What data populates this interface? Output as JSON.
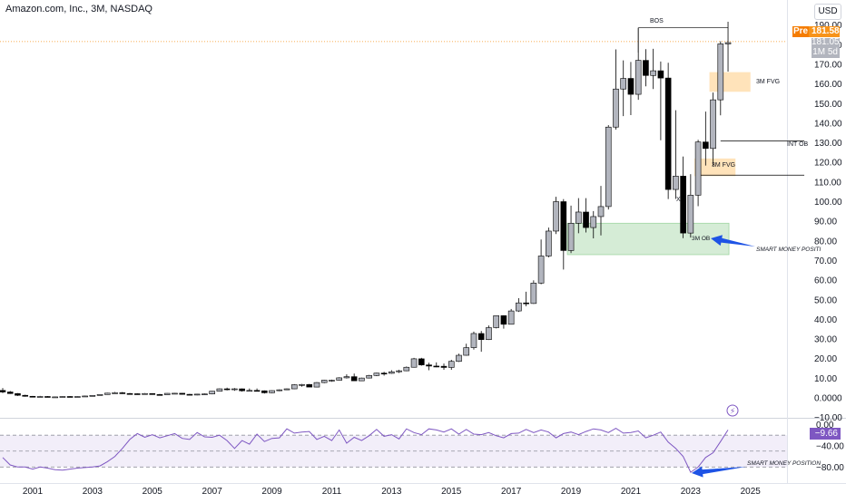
{
  "header": {
    "symbol_title": "Amazon.com, Inc., 3M, NASDAQ",
    "currency": "USD"
  },
  "price_tags": {
    "pre_label": "Pre",
    "pre_value": "181.58",
    "last_value": "181.05",
    "countdown": "1M 5d"
  },
  "colors": {
    "up_fill": "#b2b5be",
    "down_fill": "#000000",
    "candle_border": "#000000",
    "fvg_zone": "#ffe0b2",
    "ob_zone": "#c8e6c9",
    "rsi_line": "#7e57c2",
    "rsi_band": "#ede7f6",
    "annotation_arrow": "#1e53e5",
    "pre_line": "#f7931a"
  },
  "annotations": {
    "bos": "BOS",
    "fvg_upper": "3M FVG",
    "fvg_lower": "3M FVG",
    "int_ob": "INT OB",
    "ob": "3M OB",
    "x_mark": "X",
    "smart_money_price": "SMART MONEY POSITI",
    "smart_money_rsi": "SMART MONEY POSITION"
  },
  "chart_data": [
    {
      "type": "candlestick",
      "title": "Amazon.com, Inc., 3M, NASDAQ",
      "interval": "3M",
      "ylim": [
        -10,
        190
      ],
      "y_ticks": [
        190,
        180,
        170,
        160,
        150,
        140,
        130,
        120,
        110,
        100,
        90,
        80,
        70,
        60,
        50,
        40,
        30,
        20,
        10,
        0,
        -10
      ],
      "y_tick_labels": [
        "190.00",
        "180.00",
        "170.00",
        "160.00",
        "150.00",
        "140.00",
        "130.00",
        "120.00",
        "110.00",
        "100.00",
        "90.00",
        "80.00",
        "70.00",
        "60.00",
        "50.00",
        "40.00",
        "30.00",
        "20.00",
        "10.00",
        "0.0000",
        "−10.00"
      ],
      "x_tick_labels": [
        "2001",
        "2003",
        "2005",
        "2007",
        "2009",
        "2011",
        "2013",
        "2015",
        "2017",
        "2019",
        "2021",
        "2023",
        "2025"
      ],
      "x_tick_years": [
        2001,
        2003,
        2005,
        2007,
        2009,
        2011,
        2013,
        2015,
        2017,
        2019,
        2021,
        2023,
        2025
      ],
      "xlim": [
        2000.0,
        2026.9
      ],
      "candles": [
        {
          "t": 2000.0,
          "o": 3.8,
          "h": 5.0,
          "l": 2.4,
          "c": 3.0
        },
        {
          "t": 2000.25,
          "o": 3.0,
          "h": 3.5,
          "l": 2.0,
          "c": 2.2
        },
        {
          "t": 2000.5,
          "o": 2.2,
          "h": 2.4,
          "l": 1.0,
          "c": 1.3
        },
        {
          "t": 2000.75,
          "o": 1.3,
          "h": 1.6,
          "l": 0.6,
          "c": 0.8
        },
        {
          "t": 2001.0,
          "o": 0.8,
          "h": 1.0,
          "l": 0.4,
          "c": 0.5
        },
        {
          "t": 2001.25,
          "o": 0.5,
          "h": 1.0,
          "l": 0.3,
          "c": 0.7
        },
        {
          "t": 2001.5,
          "o": 0.7,
          "h": 0.9,
          "l": 0.3,
          "c": 0.45
        },
        {
          "t": 2001.75,
          "o": 0.45,
          "h": 0.6,
          "l": 0.3,
          "c": 0.5
        },
        {
          "t": 2002.0,
          "o": 0.5,
          "h": 0.8,
          "l": 0.4,
          "c": 0.7
        },
        {
          "t": 2002.25,
          "o": 0.7,
          "h": 0.9,
          "l": 0.5,
          "c": 0.6
        },
        {
          "t": 2002.5,
          "o": 0.6,
          "h": 0.8,
          "l": 0.4,
          "c": 0.7
        },
        {
          "t": 2002.75,
          "o": 0.7,
          "h": 1.1,
          "l": 0.6,
          "c": 0.95
        },
        {
          "t": 2003.0,
          "o": 0.95,
          "h": 1.3,
          "l": 0.9,
          "c": 1.25
        },
        {
          "t": 2003.25,
          "o": 1.25,
          "h": 1.8,
          "l": 1.2,
          "c": 1.7
        },
        {
          "t": 2003.5,
          "o": 1.7,
          "h": 2.6,
          "l": 1.6,
          "c": 2.4
        },
        {
          "t": 2003.75,
          "o": 2.4,
          "h": 3.0,
          "l": 2.2,
          "c": 2.6
        },
        {
          "t": 2004.0,
          "o": 2.6,
          "h": 3.0,
          "l": 2.0,
          "c": 2.2
        },
        {
          "t": 2004.25,
          "o": 2.2,
          "h": 2.5,
          "l": 1.8,
          "c": 2.1
        },
        {
          "t": 2004.5,
          "o": 2.1,
          "h": 2.3,
          "l": 1.7,
          "c": 1.9
        },
        {
          "t": 2004.75,
          "o": 1.9,
          "h": 2.4,
          "l": 1.7,
          "c": 2.2
        },
        {
          "t": 2005.0,
          "o": 2.2,
          "h": 2.3,
          "l": 1.6,
          "c": 1.7
        },
        {
          "t": 2005.25,
          "o": 1.7,
          "h": 2.0,
          "l": 1.5,
          "c": 1.6
        },
        {
          "t": 2005.5,
          "o": 1.6,
          "h": 2.4,
          "l": 1.6,
          "c": 2.3
        },
        {
          "t": 2005.75,
          "o": 2.3,
          "h": 2.5,
          "l": 2.2,
          "c": 2.35
        },
        {
          "t": 2006.0,
          "o": 2.35,
          "h": 2.4,
          "l": 1.7,
          "c": 1.8
        },
        {
          "t": 2006.25,
          "o": 1.8,
          "h": 2.0,
          "l": 1.5,
          "c": 1.6
        },
        {
          "t": 2006.5,
          "o": 1.6,
          "h": 2.0,
          "l": 1.3,
          "c": 1.9
        },
        {
          "t": 2006.75,
          "o": 1.9,
          "h": 2.2,
          "l": 1.8,
          "c": 2.0
        },
        {
          "t": 2007.0,
          "o": 2.0,
          "h": 3.5,
          "l": 1.8,
          "c": 3.4
        },
        {
          "t": 2007.25,
          "o": 3.4,
          "h": 4.8,
          "l": 3.3,
          "c": 4.6
        },
        {
          "t": 2007.5,
          "o": 4.6,
          "h": 5.2,
          "l": 3.8,
          "c": 4.2
        },
        {
          "t": 2007.75,
          "o": 4.2,
          "h": 5.0,
          "l": 3.6,
          "c": 4.6
        },
        {
          "t": 2008.0,
          "o": 4.6,
          "h": 4.8,
          "l": 3.2,
          "c": 3.6
        },
        {
          "t": 2008.25,
          "o": 3.6,
          "h": 4.8,
          "l": 3.4,
          "c": 3.8
        },
        {
          "t": 2008.5,
          "o": 3.8,
          "h": 4.8,
          "l": 3.5,
          "c": 3.6
        },
        {
          "t": 2008.75,
          "o": 3.6,
          "h": 3.8,
          "l": 2.2,
          "c": 2.6
        },
        {
          "t": 2009.0,
          "o": 2.6,
          "h": 3.8,
          "l": 2.4,
          "c": 3.7
        },
        {
          "t": 2009.25,
          "o": 3.7,
          "h": 4.3,
          "l": 3.4,
          "c": 4.1
        },
        {
          "t": 2009.5,
          "o": 4.1,
          "h": 4.8,
          "l": 3.9,
          "c": 4.6
        },
        {
          "t": 2009.75,
          "o": 4.6,
          "h": 7.0,
          "l": 4.5,
          "c": 6.7
        },
        {
          "t": 2010.0,
          "o": 6.7,
          "h": 7.1,
          "l": 5.7,
          "c": 6.8
        },
        {
          "t": 2010.25,
          "o": 6.8,
          "h": 7.1,
          "l": 5.9,
          "c": 5.5
        },
        {
          "t": 2010.5,
          "o": 5.5,
          "h": 8.0,
          "l": 5.4,
          "c": 7.8
        },
        {
          "t": 2010.75,
          "o": 7.8,
          "h": 9.2,
          "l": 7.5,
          "c": 9.0
        },
        {
          "t": 2011.0,
          "o": 9.0,
          "h": 9.3,
          "l": 8.2,
          "c": 9.0
        },
        {
          "t": 2011.25,
          "o": 9.0,
          "h": 10.5,
          "l": 8.9,
          "c": 10.2
        },
        {
          "t": 2011.5,
          "o": 10.2,
          "h": 12.0,
          "l": 9.9,
          "c": 10.8
        },
        {
          "t": 2011.75,
          "o": 10.8,
          "h": 12.4,
          "l": 8.6,
          "c": 8.7
        },
        {
          "t": 2012.0,
          "o": 8.7,
          "h": 10.3,
          "l": 8.6,
          "c": 10.1
        },
        {
          "t": 2012.25,
          "o": 10.1,
          "h": 11.7,
          "l": 9.9,
          "c": 11.4
        },
        {
          "t": 2012.5,
          "o": 11.4,
          "h": 12.8,
          "l": 11.1,
          "c": 12.6
        },
        {
          "t": 2012.75,
          "o": 12.6,
          "h": 13.3,
          "l": 11.3,
          "c": 12.5
        },
        {
          "t": 2013.0,
          "o": 12.5,
          "h": 14.1,
          "l": 12.3,
          "c": 13.3
        },
        {
          "t": 2013.25,
          "o": 13.3,
          "h": 14.3,
          "l": 12.7,
          "c": 13.8
        },
        {
          "t": 2013.5,
          "o": 13.8,
          "h": 16.0,
          "l": 13.6,
          "c": 15.6
        },
        {
          "t": 2013.75,
          "o": 15.6,
          "h": 20.4,
          "l": 15.4,
          "c": 19.9
        },
        {
          "t": 2014.0,
          "o": 19.9,
          "h": 20.4,
          "l": 16.4,
          "c": 16.8
        },
        {
          "t": 2014.25,
          "o": 16.8,
          "h": 17.9,
          "l": 14.1,
          "c": 16.2
        },
        {
          "t": 2014.5,
          "o": 16.2,
          "h": 18.1,
          "l": 15.6,
          "c": 16.1
        },
        {
          "t": 2014.75,
          "o": 16.1,
          "h": 17.5,
          "l": 14.3,
          "c": 15.5
        },
        {
          "t": 2015.0,
          "o": 15.5,
          "h": 19.4,
          "l": 14.3,
          "c": 18.6
        },
        {
          "t": 2015.25,
          "o": 18.6,
          "h": 22.5,
          "l": 18.3,
          "c": 21.7
        },
        {
          "t": 2015.5,
          "o": 21.7,
          "h": 27.6,
          "l": 21.5,
          "c": 25.6
        },
        {
          "t": 2015.75,
          "o": 25.6,
          "h": 33.8,
          "l": 24.6,
          "c": 32.8
        },
        {
          "t": 2016.0,
          "o": 32.8,
          "h": 34.1,
          "l": 23.5,
          "c": 29.7
        },
        {
          "t": 2016.25,
          "o": 29.7,
          "h": 36.9,
          "l": 29.5,
          "c": 35.8
        },
        {
          "t": 2016.5,
          "o": 35.8,
          "h": 42.0,
          "l": 35.4,
          "c": 41.9
        },
        {
          "t": 2016.75,
          "o": 41.9,
          "h": 42.1,
          "l": 35.3,
          "c": 37.5
        },
        {
          "t": 2017.0,
          "o": 37.5,
          "h": 45.3,
          "l": 37.4,
          "c": 44.3
        },
        {
          "t": 2017.25,
          "o": 44.3,
          "h": 50.8,
          "l": 43.8,
          "c": 48.4
        },
        {
          "t": 2017.5,
          "o": 48.4,
          "h": 54.1,
          "l": 46.7,
          "c": 48.1
        },
        {
          "t": 2017.75,
          "o": 48.1,
          "h": 59.9,
          "l": 47.9,
          "c": 58.5
        },
        {
          "t": 2018.0,
          "o": 58.5,
          "h": 80.7,
          "l": 57.9,
          "c": 72.3
        },
        {
          "t": 2018.25,
          "o": 72.3,
          "h": 86.8,
          "l": 71.6,
          "c": 85.0
        },
        {
          "t": 2018.5,
          "o": 85.0,
          "h": 102.5,
          "l": 83.5,
          "c": 100.0
        },
        {
          "t": 2018.75,
          "o": 100.0,
          "h": 101.3,
          "l": 65.4,
          "c": 75.1
        },
        {
          "t": 2019.0,
          "o": 75.1,
          "h": 98.0,
          "l": 73.8,
          "c": 89.0
        },
        {
          "t": 2019.25,
          "o": 89.0,
          "h": 101.8,
          "l": 83.9,
          "c": 94.7
        },
        {
          "t": 2019.5,
          "o": 94.7,
          "h": 101.8,
          "l": 84.3,
          "c": 86.8
        },
        {
          "t": 2019.75,
          "o": 86.8,
          "h": 95.2,
          "l": 81.3,
          "c": 92.4
        },
        {
          "t": 2020.0,
          "o": 92.4,
          "h": 108.0,
          "l": 82.8,
          "c": 97.5
        },
        {
          "t": 2020.25,
          "o": 97.5,
          "h": 139.0,
          "l": 96.0,
          "c": 138.0
        },
        {
          "t": 2020.5,
          "o": 138.0,
          "h": 177.6,
          "l": 136.7,
          "c": 157.4
        },
        {
          "t": 2020.75,
          "o": 157.4,
          "h": 172.0,
          "l": 143.6,
          "c": 162.8
        },
        {
          "t": 2021.0,
          "o": 162.8,
          "h": 171.2,
          "l": 144.1,
          "c": 154.7
        },
        {
          "t": 2021.25,
          "o": 154.7,
          "h": 188.6,
          "l": 151.9,
          "c": 172.0
        },
        {
          "t": 2021.5,
          "o": 172.0,
          "h": 177.7,
          "l": 158.8,
          "c": 164.3
        },
        {
          "t": 2021.75,
          "o": 164.3,
          "h": 177.9,
          "l": 157.4,
          "c": 166.7
        },
        {
          "t": 2022.0,
          "o": 166.7,
          "h": 171.4,
          "l": 131.3,
          "c": 163.0
        },
        {
          "t": 2022.25,
          "o": 163.0,
          "h": 170.8,
          "l": 101.3,
          "c": 106.2
        },
        {
          "t": 2022.5,
          "o": 106.2,
          "h": 146.6,
          "l": 101.4,
          "c": 113.0
        },
        {
          "t": 2022.75,
          "o": 113.0,
          "h": 123.0,
          "l": 81.4,
          "c": 84.0
        },
        {
          "t": 2023.0,
          "o": 84.0,
          "h": 114.0,
          "l": 81.7,
          "c": 103.3
        },
        {
          "t": 2023.25,
          "o": 103.3,
          "h": 131.5,
          "l": 97.7,
          "c": 130.4
        },
        {
          "t": 2023.5,
          "o": 130.4,
          "h": 145.9,
          "l": 118.4,
          "c": 127.1
        },
        {
          "t": 2023.75,
          "o": 127.1,
          "h": 155.6,
          "l": 118.3,
          "c": 151.9
        },
        {
          "t": 2024.0,
          "o": 151.9,
          "h": 181.7,
          "l": 144.0,
          "c": 180.4
        },
        {
          "t": 2024.25,
          "o": 180.4,
          "h": 191.7,
          "l": 166.3,
          "c": 181.05
        }
      ]
    },
    {
      "type": "line",
      "title": "RSI",
      "ylim": [
        -94,
        0
      ],
      "y_ticks": [
        0,
        -40,
        -80
      ],
      "y_tick_labels": [
        "0.00",
        "−40.00",
        "−80.00"
      ],
      "band": [
        -80,
        -20
      ],
      "current_label": "−9.66",
      "x": [
        2000.0,
        2000.25,
        2000.5,
        2000.75,
        2001.0,
        2001.25,
        2001.5,
        2001.75,
        2002.0,
        2002.25,
        2002.5,
        2002.75,
        2003.0,
        2003.25,
        2003.5,
        2003.75,
        2004.0,
        2004.25,
        2004.5,
        2004.75,
        2005.0,
        2005.25,
        2005.5,
        2005.75,
        2006.0,
        2006.25,
        2006.5,
        2006.75,
        2007.0,
        2007.25,
        2007.5,
        2007.75,
        2008.0,
        2008.25,
        2008.5,
        2008.75,
        2009.0,
        2009.25,
        2009.5,
        2009.75,
        2010.0,
        2010.25,
        2010.5,
        2010.75,
        2011.0,
        2011.25,
        2011.5,
        2011.75,
        2012.0,
        2012.25,
        2012.5,
        2012.75,
        2013.0,
        2013.25,
        2013.5,
        2013.75,
        2014.0,
        2014.25,
        2014.5,
        2014.75,
        2015.0,
        2015.25,
        2015.5,
        2015.75,
        2016.0,
        2016.25,
        2016.5,
        2016.75,
        2017.0,
        2017.25,
        2017.5,
        2017.75,
        2018.0,
        2018.25,
        2018.5,
        2018.75,
        2019.0,
        2019.25,
        2019.5,
        2019.75,
        2020.0,
        2020.25,
        2020.5,
        2020.75,
        2021.0,
        2021.25,
        2021.5,
        2021.75,
        2022.0,
        2022.25,
        2022.5,
        2022.75,
        2023.0,
        2023.25,
        2023.5,
        2023.75,
        2024.0,
        2024.25
      ],
      "values": [
        -62,
        -76,
        -80,
        -80,
        -84,
        -80,
        -82,
        -85,
        -86,
        -84,
        -82,
        -81,
        -80,
        -78,
        -70,
        -60,
        -45,
        -28,
        -17,
        -24,
        -19,
        -25,
        -21,
        -17,
        -26,
        -28,
        -15,
        -23,
        -24,
        -20,
        -30,
        -45,
        -30,
        -37,
        -18,
        -32,
        -26,
        -25,
        -8,
        -16,
        -14,
        -13,
        -28,
        -22,
        -30,
        -10,
        -35,
        -24,
        -30,
        -21,
        -9,
        -22,
        -19,
        -27,
        -8,
        -15,
        -19,
        -8,
        -10,
        -14,
        -8,
        -18,
        -9,
        -18,
        -19,
        -15,
        -21,
        -25,
        -17,
        -16,
        -9,
        -15,
        -10,
        -14,
        -25,
        -17,
        -14,
        -19,
        -13,
        -8,
        -10,
        -15,
        -7,
        -16,
        -15,
        -12,
        -25,
        -20,
        -14,
        -33,
        -45,
        -60,
        -90,
        -80,
        -62,
        -53,
        -32,
        -10
      ],
      "annotations": [
        "SMART MONEY POSITION"
      ]
    }
  ]
}
